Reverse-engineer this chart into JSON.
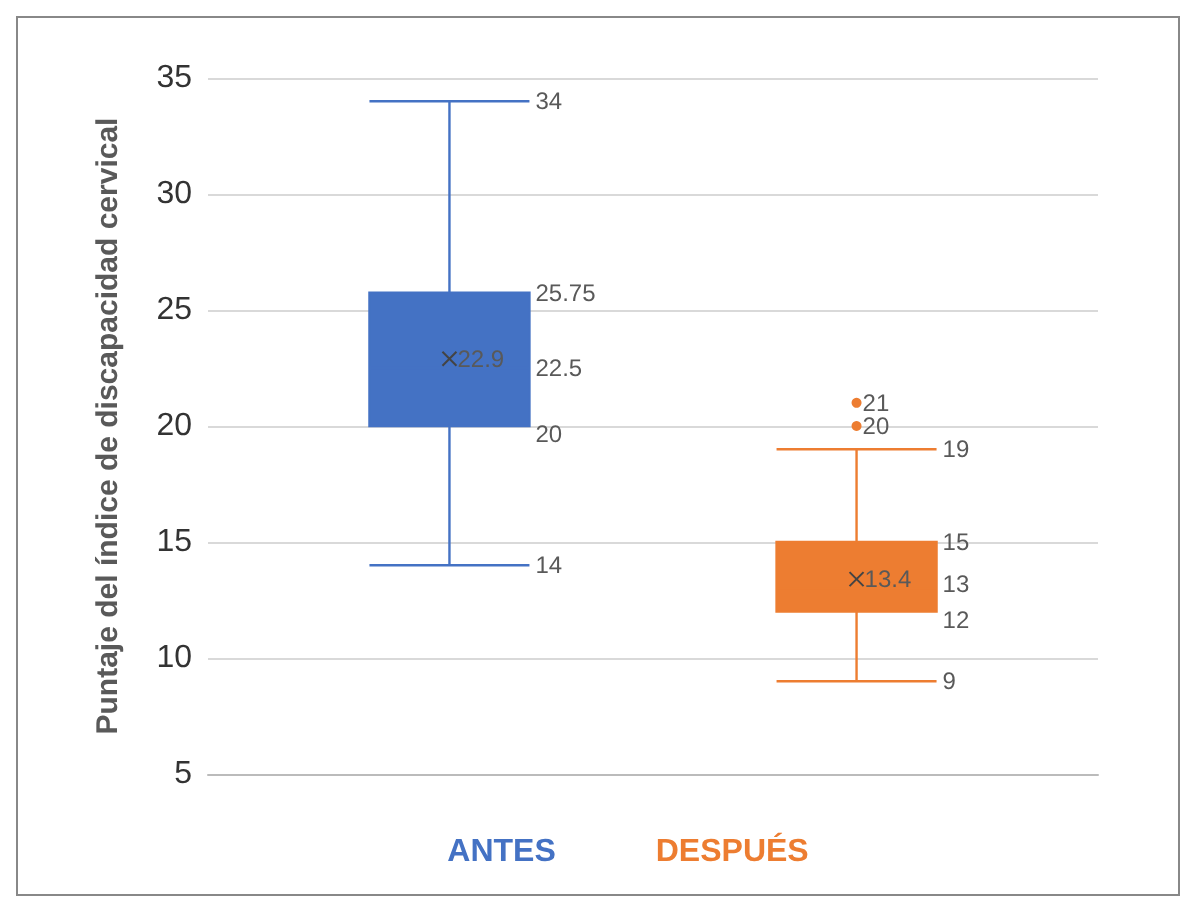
{
  "chart_data": {
    "type": "box",
    "ylabel": "Puntaje del índice de discapacidad cervical",
    "categories": [
      null
    ],
    "ylim": [
      5,
      35
    ],
    "yticks": [
      5,
      10,
      15,
      20,
      25,
      30,
      35
    ],
    "grid": "y",
    "legend": "bottom",
    "series": [
      {
        "name": "ANTES",
        "color": "#4472c4",
        "boxes": [
          {
            "low": 14,
            "q1": 20,
            "median": 22.5,
            "q3": 25.75,
            "high": 34,
            "mean": 22.9
          }
        ]
      },
      {
        "name": "DESPUÉS",
        "color": "#ed7d31",
        "boxes": [
          {
            "low": 9,
            "q1": 12,
            "median": 13,
            "q3": 15,
            "high": 19,
            "mean": 13.4,
            "outliers": [
              20,
              21
            ]
          }
        ]
      }
    ],
    "annotations": [
      "34",
      "25.75",
      "22.9",
      "22.5",
      "20",
      "14",
      "19",
      "15",
      "13.4",
      "13",
      "12",
      "9",
      "20",
      "21"
    ]
  }
}
